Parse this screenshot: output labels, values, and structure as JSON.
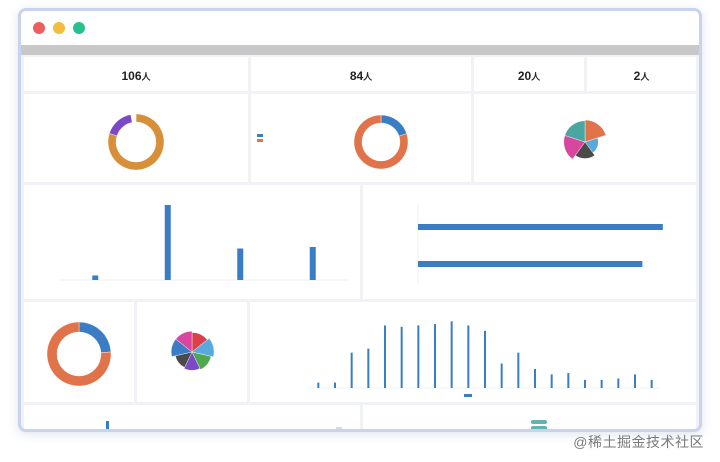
{
  "window": {
    "buttons": [
      {
        "name": "close",
        "color": "#ee5e5e"
      },
      {
        "name": "minimize",
        "color": "#f3bd3d"
      },
      {
        "name": "maximize",
        "color": "#27c28b"
      }
    ]
  },
  "stats": [
    {
      "title": "",
      "value": "106",
      "unit": "人"
    },
    {
      "title": "",
      "value": "84",
      "unit": "人"
    },
    {
      "title": "",
      "value": "20",
      "unit": "人"
    },
    {
      "title": "",
      "value": "2",
      "unit": "人"
    }
  ],
  "colors": {
    "blue": "#3b7dc4",
    "orange": "#e0734a",
    "amber": "#d78f3a",
    "purple": "#7c49c6",
    "teal": "#4aa6a1",
    "pink": "#d946a0",
    "dark": "#4a4a4a",
    "green": "#4fa84e",
    "sky": "#5aa9dd",
    "red": "#d9404a",
    "pill": "#5fb3b3"
  },
  "chart_data": [
    {
      "id": "donut-1",
      "type": "pie",
      "slices": [
        {
          "value": 80,
          "color": "#d78f3a"
        },
        {
          "value": 17,
          "color": "#7c49c6"
        },
        {
          "value": 1,
          "color": "#ffffff"
        },
        {
          "value": 1,
          "color": "#ffffff"
        },
        {
          "value": 1,
          "color": "#ffffff"
        }
      ]
    },
    {
      "id": "donut-2",
      "type": "pie",
      "slices": [
        {
          "value": 20,
          "color": "#3b7dc4"
        },
        {
          "value": 80,
          "color": "#e0734a"
        }
      ]
    },
    {
      "id": "rose-1",
      "type": "pie",
      "slices": [
        {
          "value": 28,
          "color": "#e0734a"
        },
        {
          "value": 6,
          "color": "#5aa9dd"
        },
        {
          "value": 14,
          "color": "#4a4a4a"
        },
        {
          "value": 26,
          "color": "#d946a0"
        },
        {
          "value": 26,
          "color": "#4aa6a1"
        }
      ]
    },
    {
      "id": "bar-1",
      "type": "bar",
      "values": [
        6,
        100,
        42,
        44
      ],
      "ylim": [
        0,
        100
      ],
      "color": "#3b7dc4"
    },
    {
      "id": "hbar-1",
      "type": "bar",
      "orientation": "horizontal",
      "values": [
        96,
        88
      ],
      "xlim": [
        0,
        100
      ],
      "color": "#3b7dc4"
    },
    {
      "id": "donut-3",
      "type": "pie",
      "slices": [
        {
          "value": 24,
          "color": "#3b7dc4"
        },
        {
          "value": 76,
          "color": "#e0734a"
        }
      ]
    },
    {
      "id": "rose-2",
      "type": "pie",
      "slices": [
        {
          "value": 14,
          "color": "#d9404a"
        },
        {
          "value": 18,
          "color": "#5aa9dd"
        },
        {
          "value": 14,
          "color": "#4fa84e"
        },
        {
          "value": 12,
          "color": "#7c49c6"
        },
        {
          "value": 10,
          "color": "#4a4a4a"
        },
        {
          "value": 16,
          "color": "#3b7dc4"
        },
        {
          "value": 16,
          "color": "#d946a0"
        }
      ]
    },
    {
      "id": "bar-2",
      "type": "bar",
      "values": [
        8,
        8,
        52,
        58,
        92,
        90,
        92,
        94,
        98,
        92,
        84,
        36,
        52,
        28,
        20,
        22,
        12,
        12,
        14,
        20,
        12
      ],
      "ylim": [
        0,
        100
      ],
      "color": "#3b7dc4"
    },
    {
      "id": "bar-3",
      "type": "bar",
      "values": [
        100
      ],
      "ylim": [
        0,
        100
      ],
      "color": "#3b7dc4"
    }
  ]
}
